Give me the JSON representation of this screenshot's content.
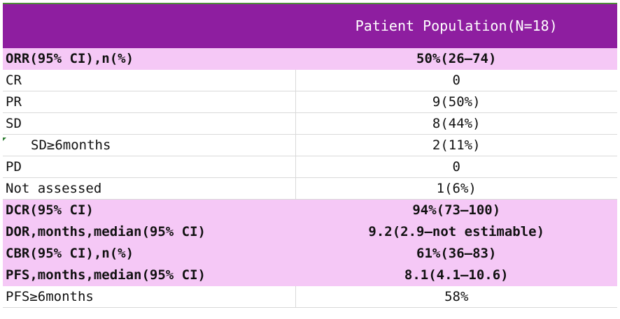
{
  "table": {
    "header": {
      "label": "",
      "value": "Patient Population(N=18)"
    },
    "rows": [
      {
        "label": "ORR(95% CI),n(%)",
        "value": "50%(26–74)",
        "highlight": true,
        "indent": false
      },
      {
        "label": "CR",
        "value": "0",
        "highlight": false,
        "indent": false
      },
      {
        "label": "PR",
        "value": "9(50%)",
        "highlight": false,
        "indent": false
      },
      {
        "label": "SD",
        "value": "8(44%)",
        "highlight": false,
        "indent": false
      },
      {
        "label": "SD≥6months",
        "value": "2(11%)",
        "highlight": false,
        "indent": true
      },
      {
        "label": "PD",
        "value": "0",
        "highlight": false,
        "indent": false
      },
      {
        "label": "Not assessed",
        "value": "1(6%)",
        "highlight": false,
        "indent": false
      },
      {
        "label": "DCR(95% CI)",
        "value": "94%(73–100)",
        "highlight": true,
        "indent": false
      },
      {
        "label": "DOR,months,median(95% CI)",
        "value": "9.2(2.9–not estimable)",
        "highlight": true,
        "indent": false
      },
      {
        "label": "CBR(95% CI),n(%)",
        "value": "61%(36–83)",
        "highlight": true,
        "indent": false
      },
      {
        "label": "PFS,months,median(95% CI)",
        "value": "8.1(4.1–10.6)",
        "highlight": true,
        "indent": false
      },
      {
        "label": "PFS≥6months",
        "value": "58%",
        "highlight": false,
        "indent": false
      }
    ]
  },
  "colors": {
    "header_bg": "#8e1ea0",
    "highlight_bg": "#f5c8f6",
    "grid_line": "#d9d9d9"
  }
}
